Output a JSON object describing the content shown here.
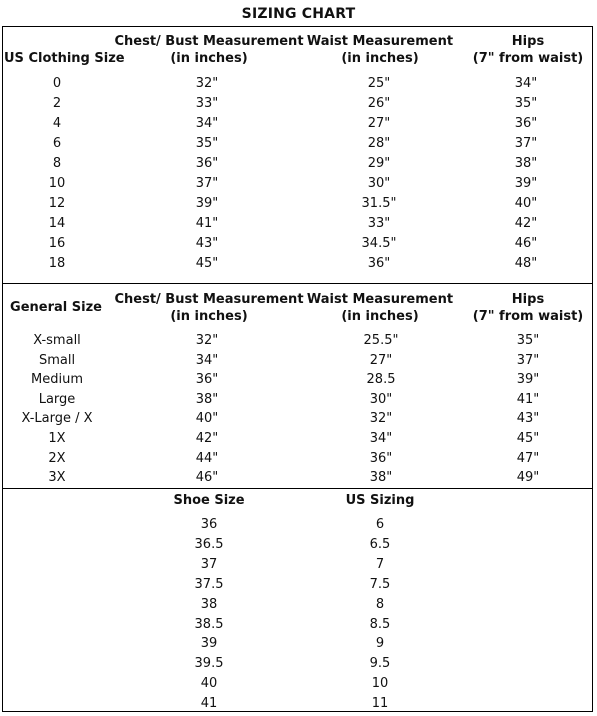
{
  "title": "SIZING CHART",
  "us_table": {
    "headers": {
      "size": "US Clothing Size",
      "chest_line1": "Chest/ Bust Measurement",
      "chest_line2": "(in inches)",
      "waist_line1": "Waist Measurement",
      "waist_line2": "(in inches)",
      "hips_line1": "Hips",
      "hips_line2": "(7\" from waist)"
    },
    "rows": [
      {
        "size": "0",
        "chest": "32\"",
        "waist": "25\"",
        "hips": "34\""
      },
      {
        "size": "2",
        "chest": "33\"",
        "waist": "26\"",
        "hips": "35\""
      },
      {
        "size": "4",
        "chest": "34\"",
        "waist": "27\"",
        "hips": "36\""
      },
      {
        "size": "6",
        "chest": "35\"",
        "waist": "28\"",
        "hips": "37\""
      },
      {
        "size": "8",
        "chest": "36\"",
        "waist": "29\"",
        "hips": "38\""
      },
      {
        "size": "10",
        "chest": "37\"",
        "waist": "30\"",
        "hips": "39\""
      },
      {
        "size": "12",
        "chest": "39\"",
        "waist": "31.5\"",
        "hips": "40\""
      },
      {
        "size": "14",
        "chest": "41\"",
        "waist": "33\"",
        "hips": "42\""
      },
      {
        "size": "16",
        "chest": "43\"",
        "waist": "34.5\"",
        "hips": "46\""
      },
      {
        "size": "18",
        "chest": "45\"",
        "waist": "36\"",
        "hips": "48\""
      }
    ]
  },
  "general_table": {
    "headers": {
      "size": "General Size",
      "chest_line1": "Chest/ Bust Measurement",
      "chest_line2": "(in inches)",
      "waist_line1": "Waist Measurement",
      "waist_line2": "(in inches)",
      "hips_line1": "Hips",
      "hips_line2": "(7\" from waist)"
    },
    "rows": [
      {
        "size": "X-small",
        "chest": "32\"",
        "waist": "25.5\"",
        "hips": "35\""
      },
      {
        "size": "Small",
        "chest": "34\"",
        "waist": "27\"",
        "hips": "37\""
      },
      {
        "size": "Medium",
        "chest": "36\"",
        "waist": "28.5",
        "hips": "39\""
      },
      {
        "size": "Large",
        "chest": "38\"",
        "waist": "30\"",
        "hips": "41\""
      },
      {
        "size": "X-Large / X",
        "chest": "40\"",
        "waist": "32\"",
        "hips": "43\""
      },
      {
        "size": "1X",
        "chest": "42\"",
        "waist": "34\"",
        "hips": "45\""
      },
      {
        "size": "2X",
        "chest": "44\"",
        "waist": "36\"",
        "hips": "47\""
      },
      {
        "size": "3X",
        "chest": "46\"",
        "waist": "38\"",
        "hips": "49\""
      }
    ]
  },
  "shoe_table": {
    "headers": {
      "shoe": "Shoe Size",
      "us": "US Sizing"
    },
    "rows": [
      {
        "shoe": "36",
        "us": "6"
      },
      {
        "shoe": "36.5",
        "us": "6.5"
      },
      {
        "shoe": "37",
        "us": "7"
      },
      {
        "shoe": "37.5",
        "us": "7.5"
      },
      {
        "shoe": "38",
        "us": "8"
      },
      {
        "shoe": "38.5",
        "us": "8.5"
      },
      {
        "shoe": "39",
        "us": "9"
      },
      {
        "shoe": "39.5",
        "us": "9.5"
      },
      {
        "shoe": "40",
        "us": "10"
      },
      {
        "shoe": "41",
        "us": "11"
      }
    ]
  }
}
